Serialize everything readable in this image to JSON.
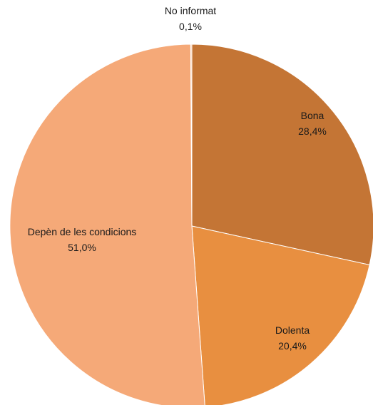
{
  "chart_data": {
    "type": "pie",
    "title": "",
    "start_angle_deg": 0,
    "direction": "clockwise",
    "slices": [
      {
        "label": "Bona",
        "value": 28.4,
        "value_label": "28,4%",
        "color": "#c47535"
      },
      {
        "label": "Dolenta",
        "value": 20.4,
        "value_label": "20,4%",
        "color": "#e88f40"
      },
      {
        "label": "Depèn de les condicions",
        "value": 51.0,
        "value_label": "51,0%",
        "color": "#f5a978"
      },
      {
        "label": "No informat",
        "value": 0.1,
        "value_label": "0,1%",
        "color": "#f8c8a8"
      }
    ],
    "legend": "none"
  }
}
